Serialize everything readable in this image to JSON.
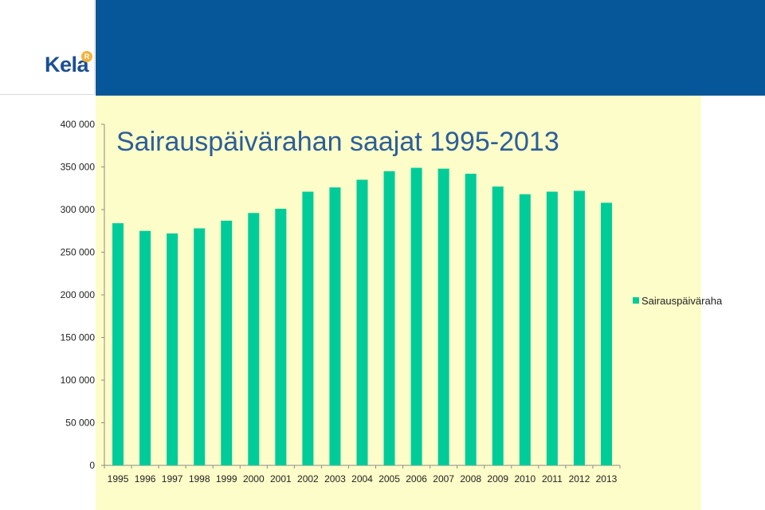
{
  "brand": {
    "logo_text": "Kela",
    "logo_mark": "R"
  },
  "colors": {
    "header": "#05579a",
    "plot_bg": "#fdfdc9",
    "bar": "#00cc99",
    "title": "#2d5e99"
  },
  "chart_data": {
    "type": "bar",
    "title": "Sairauspäivärahan saajat 1995-2013",
    "xlabel": "",
    "ylabel": "",
    "ylim": [
      0,
      400000
    ],
    "yticks": [
      0,
      50000,
      100000,
      150000,
      200000,
      250000,
      300000,
      350000,
      400000
    ],
    "ytick_labels": [
      "0",
      "50 000",
      "100 000",
      "150 000",
      "200 000",
      "250 000",
      "300 000",
      "350 000",
      "400 000"
    ],
    "categories": [
      "1995",
      "1996",
      "1997",
      "1998",
      "1999",
      "2000",
      "2001",
      "2002",
      "2003",
      "2004",
      "2005",
      "2006",
      "2007",
      "2008",
      "2009",
      "2010",
      "2011",
      "2012",
      "2013"
    ],
    "series": [
      {
        "name": "Sairauspäiväraha",
        "values": [
          284000,
          275000,
          272000,
          278000,
          287000,
          296000,
          301000,
          321000,
          326000,
          335000,
          345000,
          349000,
          348000,
          342000,
          327000,
          318000,
          321000,
          322000,
          308000
        ]
      }
    ],
    "legend_position": "right",
    "grid": false
  }
}
